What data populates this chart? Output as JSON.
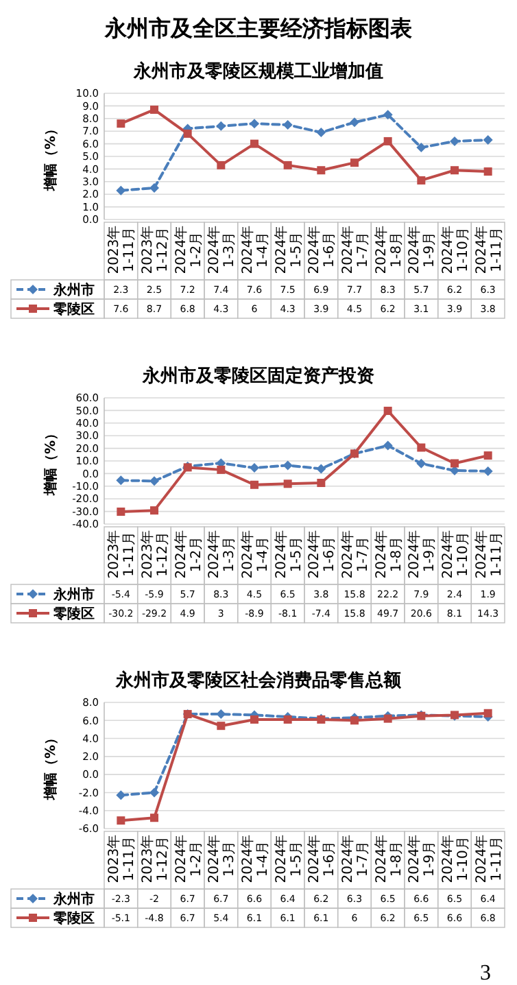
{
  "chart_data": [
    {
      "type": "line",
      "title": "永州市及零陵区规模工业增加值",
      "annotations": [
        "永州市及全区主要经济指标图表"
      ],
      "ylabel": "增幅（%）",
      "categories": [
        "2023年 1-11月",
        "2023年 1-12月",
        "2024年 1-2月",
        "2024年 1-3月",
        "2024年 1-4月",
        "2024年 1-5月",
        "2024年 1-6月",
        "2024年 1-7月",
        "2024年 1-8月",
        "2024年 1-9月",
        "2024年 1-10月",
        "2024年 1-11月"
      ],
      "ylim": [
        0,
        10
      ],
      "yticks": [
        {
          "value": 0,
          "label": "0.0"
        },
        {
          "value": 1,
          "label": "1.0"
        },
        {
          "value": 2,
          "label": "2.0"
        },
        {
          "value": 3,
          "label": "3.0"
        },
        {
          "value": 4,
          "label": "4.0"
        },
        {
          "value": 5,
          "label": "5.0"
        },
        {
          "value": 6,
          "label": "6.0"
        },
        {
          "value": 7,
          "label": "7.0"
        },
        {
          "value": 8,
          "label": "8.0"
        },
        {
          "value": 9,
          "label": "9.0"
        },
        {
          "value": 10,
          "label": "10.0"
        }
      ],
      "grid": "y",
      "legend": "bottom",
      "data_labels": true,
      "series": [
        {
          "name": "永州市",
          "color": "#4a7ebb",
          "line_style": "dashed",
          "marker": "diamond",
          "values": [
            2.3,
            2.5,
            7.2,
            7.4,
            7.6,
            7.5,
            6.9,
            7.7,
            8.3,
            5.7,
            6.2,
            6.3
          ]
        },
        {
          "name": "零陵区",
          "color": "#be4b48",
          "line_style": "solid",
          "marker": "square",
          "values": [
            7.6,
            8.7,
            6.8,
            4.3,
            6,
            4.3,
            3.9,
            4.5,
            6.2,
            3.1,
            3.9,
            3.8
          ]
        }
      ]
    },
    {
      "type": "line",
      "title": "永州市及零陵区固定资产投资",
      "ylabel": "增幅（%）",
      "categories": [
        "2023年 1-11月",
        "2023年 1-12月",
        "2024年 1-2月",
        "2024年 1-3月",
        "2024年 1-4月",
        "2024年 1-5月",
        "2024年 1-6月",
        "2024年 1-7月",
        "2024年 1-8月",
        "2024年 1-9月",
        "2024年 1-10月",
        "2024年 1-11月"
      ],
      "ylim": [
        -40,
        60
      ],
      "yticks": [
        {
          "value": -40,
          "label": "-40.0"
        },
        {
          "value": -30,
          "label": "-30.0"
        },
        {
          "value": -20,
          "label": "-20.0"
        },
        {
          "value": -10,
          "label": "-10.0"
        },
        {
          "value": 0,
          "label": "0.0"
        },
        {
          "value": 10,
          "label": "10.0"
        },
        {
          "value": 20,
          "label": "20.0"
        },
        {
          "value": 30,
          "label": "30.0"
        },
        {
          "value": 40,
          "label": "40.0"
        },
        {
          "value": 50,
          "label": "50.0"
        },
        {
          "value": 60,
          "label": "60.0"
        }
      ],
      "grid": "y",
      "legend": "bottom",
      "data_labels": true,
      "series": [
        {
          "name": "永州市",
          "color": "#4a7ebb",
          "line_style": "dashed",
          "marker": "diamond",
          "values": [
            -5.4,
            -5.9,
            5.7,
            8.3,
            4.5,
            6.5,
            3.8,
            15.8,
            22.2,
            7.9,
            2.4,
            1.9
          ]
        },
        {
          "name": "零陵区",
          "color": "#be4b48",
          "line_style": "solid",
          "marker": "square",
          "values": [
            -30.2,
            -29.2,
            4.9,
            3,
            -8.9,
            -8.1,
            -7.4,
            15.8,
            49.7,
            20.6,
            8.1,
            14.3
          ]
        }
      ]
    },
    {
      "type": "line",
      "title": "永州市及零陵区社会消费品零售总额",
      "annotations": [
        "3"
      ],
      "ylabel": "增幅（%）",
      "categories": [
        "2023年 1-11月",
        "2023年 1-12月",
        "2024年 1-2月",
        "2024年 1-3月",
        "2024年 1-4月",
        "2024年 1-5月",
        "2024年 1-6月",
        "2024年 1-7月",
        "2024年 1-8月",
        "2024年 1-9月",
        "2024年 1-10月",
        "2024年 1-11月"
      ],
      "ylim": [
        -6,
        8
      ],
      "yticks": [
        {
          "value": -6,
          "label": "-6.0"
        },
        {
          "value": -4,
          "label": "-4.0"
        },
        {
          "value": -2,
          "label": "-2.0"
        },
        {
          "value": 0,
          "label": "0.0"
        },
        {
          "value": 2,
          "label": "2.0"
        },
        {
          "value": 4,
          "label": "4.0"
        },
        {
          "value": 6,
          "label": "6.0"
        },
        {
          "value": 8,
          "label": "8.0"
        }
      ],
      "grid": "y",
      "legend": "bottom",
      "data_labels": true,
      "series": [
        {
          "name": "永州市",
          "color": "#4a7ebb",
          "line_style": "dashed",
          "marker": "diamond",
          "values": [
            -2.3,
            -2,
            6.7,
            6.7,
            6.6,
            6.4,
            6.2,
            6.3,
            6.5,
            6.6,
            6.5,
            6.4
          ]
        },
        {
          "name": "零陵区",
          "color": "#be4b48",
          "line_style": "solid",
          "marker": "square",
          "values": [
            -5.1,
            -4.8,
            6.7,
            5.4,
            6.1,
            6.1,
            6.1,
            6,
            6.2,
            6.5,
            6.6,
            6.8
          ]
        }
      ]
    }
  ]
}
